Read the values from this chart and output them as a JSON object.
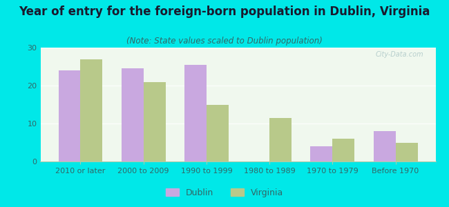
{
  "title": "Year of entry for the foreign-born population in Dublin, Virginia",
  "subtitle": "(Note: State values scaled to Dublin population)",
  "categories": [
    "2010 or later",
    "2000 to 2009",
    "1990 to 1999",
    "1980 to 1989",
    "1970 to 1979",
    "Before 1970"
  ],
  "dublin_values": [
    24,
    24.5,
    25.5,
    0,
    4,
    8
  ],
  "virginia_values": [
    27,
    21,
    15,
    11.5,
    6,
    5
  ],
  "dublin_color": "#c9a8e0",
  "virginia_color": "#b8c98a",
  "background_outer": "#00e8e8",
  "background_inner_top": "#f0f8ee",
  "background_inner_bottom": "#e0f0f8",
  "title_color": "#1a1a2e",
  "subtitle_color": "#336666",
  "tick_color": "#336666",
  "ylim": [
    0,
    30
  ],
  "yticks": [
    0,
    10,
    20,
    30
  ],
  "bar_width": 0.35,
  "title_fontsize": 12,
  "subtitle_fontsize": 8.5,
  "legend_fontsize": 9,
  "tick_fontsize": 8,
  "watermark": "City-Data.com"
}
